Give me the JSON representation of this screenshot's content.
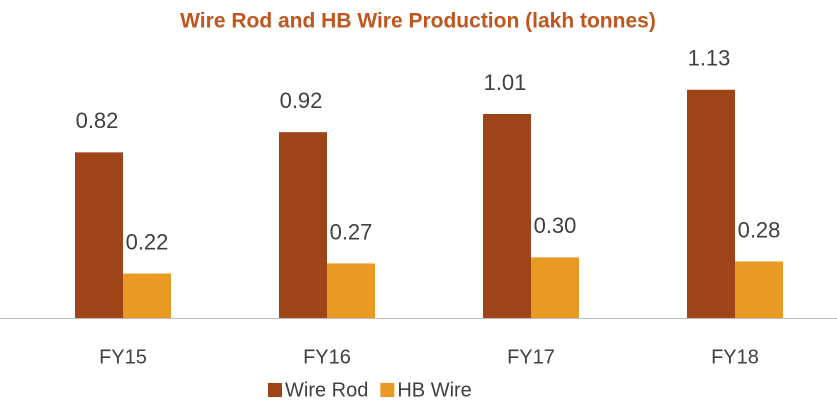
{
  "chart_data": {
    "type": "bar",
    "title": "Wire Rod and HB Wire Production (lakh tonnes)",
    "categories": [
      "FY15",
      "FY16",
      "FY17",
      "FY18"
    ],
    "series": [
      {
        "name": "Wire Rod",
        "color": "#9e4419",
        "values": [
          0.82,
          0.92,
          1.01,
          1.13
        ],
        "value_labels": [
          "0.82",
          "0.92",
          "1.01",
          "1.13"
        ]
      },
      {
        "name": "HB Wire",
        "color": "#e89a23",
        "values": [
          0.22,
          0.27,
          0.3,
          0.28
        ],
        "value_labels": [
          "0.22",
          "0.27",
          "0.30",
          "0.28"
        ]
      }
    ],
    "legend": "bottom"
  }
}
